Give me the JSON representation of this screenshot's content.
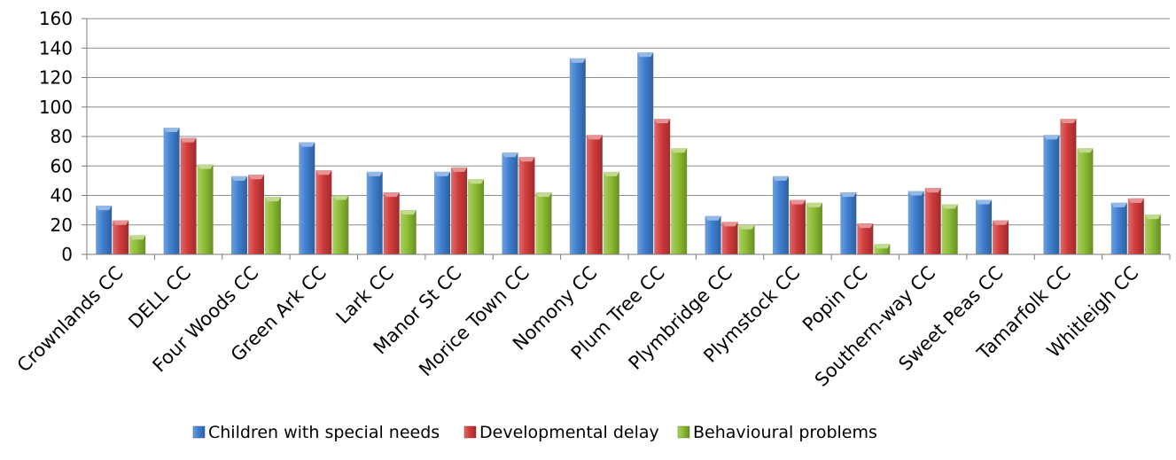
{
  "chart_data": {
    "type": "bar",
    "title": "",
    "xlabel": "",
    "ylabel": "",
    "ylim": [
      0,
      160
    ],
    "yticks": [
      0,
      20,
      40,
      60,
      80,
      100,
      120,
      140,
      160
    ],
    "grid": true,
    "legend_position": "bottom",
    "categories": [
      "Crownlands CC",
      "DELL CC",
      "Four Woods CC",
      "Green Ark CC",
      "Lark CC",
      "Manor St CC",
      "Morice Town CC",
      "Nomony CC",
      "Plum Tree CC",
      "Plymbridge CC",
      "Plymstock CC",
      "Popin CC",
      "Southern-way CC",
      "Sweet Peas CC",
      "Tamarfolk CC",
      "Whitleigh CC"
    ],
    "series": [
      {
        "name": "Children with special needs",
        "color": "#3f7fd0",
        "values": [
          33,
          86,
          53,
          76,
          56,
          56,
          69,
          133,
          137,
          26,
          53,
          42,
          43,
          37,
          81,
          35
        ]
      },
      {
        "name": "Developmental delay",
        "color": "#d13b3b",
        "values": [
          23,
          79,
          54,
          57,
          42,
          59,
          66,
          81,
          92,
          22,
          37,
          21,
          45,
          23,
          92,
          38
        ]
      },
      {
        "name": "Behavioural problems",
        "color": "#8cbd33",
        "values": [
          13,
          61,
          39,
          40,
          30,
          51,
          42,
          56,
          72,
          20,
          35,
          7,
          34,
          0,
          72,
          27
        ]
      }
    ]
  }
}
